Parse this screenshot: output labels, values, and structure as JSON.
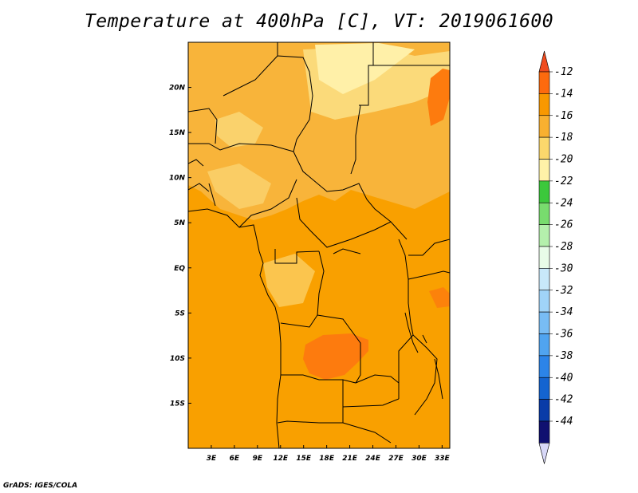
{
  "title": "Temperature at 400hPa [C], VT: 2019061600",
  "credit": "GrADS: IGES/COLA",
  "map": {
    "lon_range": [
      0,
      34
    ],
    "lat_range": [
      -20,
      25
    ],
    "x_ticks": [
      {
        "value": 3,
        "label": "3E"
      },
      {
        "value": 6,
        "label": "6E"
      },
      {
        "value": 9,
        "label": "9E"
      },
      {
        "value": 12,
        "label": "12E"
      },
      {
        "value": 15,
        "label": "15E"
      },
      {
        "value": 18,
        "label": "18E"
      },
      {
        "value": 21,
        "label": "21E"
      },
      {
        "value": 24,
        "label": "24E"
      },
      {
        "value": 27,
        "label": "27E"
      },
      {
        "value": 30,
        "label": "30E"
      },
      {
        "value": 33,
        "label": "33E"
      }
    ],
    "y_ticks": [
      {
        "value": 20,
        "label": "20N"
      },
      {
        "value": 15,
        "label": "15N"
      },
      {
        "value": 10,
        "label": "10N"
      },
      {
        "value": 5,
        "label": "5N"
      },
      {
        "value": 0,
        "label": "EQ"
      },
      {
        "value": -5,
        "label": "5S"
      },
      {
        "value": -10,
        "label": "10S"
      },
      {
        "value": -15,
        "label": "15S"
      }
    ],
    "field_colors": {
      "level_-14_-12": "#fd7b0e",
      "level_-16_-14": "#f9a000",
      "level_-18_-16": "#f8b43a",
      "level_-20_-18": "#fbde82",
      "level_-22_-20": "#fff0a8"
    }
  },
  "colorbar": {
    "labels": [
      "-12",
      "-14",
      "-16",
      "-18",
      "-20",
      "-22",
      "-24",
      "-26",
      "-28",
      "-30",
      "-32",
      "-34",
      "-36",
      "-38",
      "-40",
      "-42",
      "-44"
    ],
    "top_cap_color": "#f04b1e",
    "bottom_cap_color": "#d8d8f8",
    "segments": [
      "#fd6a0e",
      "#f89800",
      "#f8b030",
      "#fbd86c",
      "#fff2a8",
      "#3cc83c",
      "#78dc6e",
      "#b4f0ac",
      "#e8fce8",
      "#c8e8fa",
      "#a0d4f8",
      "#78bcf4",
      "#50a4f0",
      "#2c84e8",
      "#1464d0",
      "#0a3ca8",
      "#101070"
    ]
  }
}
